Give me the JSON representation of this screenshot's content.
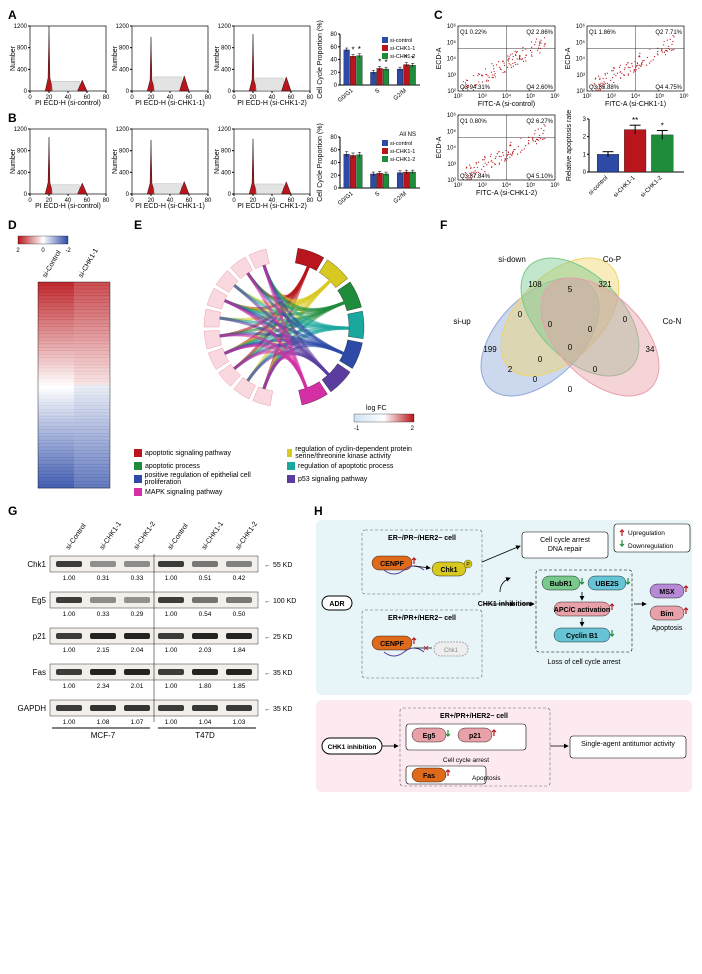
{
  "palette": {
    "red": "#b8161c",
    "blue": "#2c4aa6",
    "green": "#1e8c3b",
    "yellow": "#d8c822",
    "purple": "#5a3d9e",
    "teal": "#1aa79e",
    "magenta": "#d42fa4",
    "orange": "#e06a1c",
    "pink": "#f4c7d9",
    "lightblue": "#cfe3f2",
    "grey": "#d8d8d8",
    "black": "#000000",
    "white": "#ffffff"
  },
  "A": {
    "label": "A",
    "histograms": [
      {
        "xlabel": "PI ECD-H (si-control)",
        "xticks": [
          0,
          20,
          40,
          60,
          80
        ],
        "yticks": [
          0,
          400,
          800,
          1200
        ],
        "g1_x": 20,
        "g1_h": 1200,
        "s_x": 40,
        "s_h": 180,
        "g2_x": 55,
        "g2_h": 200
      },
      {
        "xlabel": "PI ECD-H (si-CHK1-1)",
        "xticks": [
          0,
          20,
          40,
          60,
          80
        ],
        "yticks": [
          0,
          400,
          800,
          1200
        ],
        "g1_x": 20,
        "g1_h": 1000,
        "s_x": 40,
        "s_h": 260,
        "g2_x": 55,
        "g2_h": 280
      },
      {
        "xlabel": "PI ECD-H (si-CHK1-2)",
        "xticks": [
          0,
          20,
          40,
          60,
          80
        ],
        "yticks": [
          0,
          400,
          800,
          1200
        ],
        "g1_x": 20,
        "g1_h": 1050,
        "s_x": 40,
        "s_h": 240,
        "g2_x": 55,
        "g2_h": 260
      }
    ],
    "bar": {
      "ylabel": "Cell Cycle Proportion (%)",
      "yticks": [
        0,
        20,
        40,
        60,
        80
      ],
      "groups": [
        "G0/G1",
        "S",
        "G2/M"
      ],
      "series": [
        {
          "name": "si-control",
          "color": "#2c4aa6",
          "values": [
            55,
            20,
            25
          ],
          "errs": [
            3,
            3,
            3
          ],
          "sig": [
            "",
            "",
            ""
          ]
        },
        {
          "name": "si-CHK1-1",
          "color": "#b8161c",
          "values": [
            45,
            26,
            32
          ],
          "errs": [
            3,
            3,
            3
          ],
          "sig": [
            "*",
            "*",
            "*"
          ]
        },
        {
          "name": "si-CHK1-2",
          "color": "#1e8c3b",
          "values": [
            46,
            25,
            31
          ],
          "errs": [
            3,
            3,
            3
          ],
          "sig": [
            "*",
            "*",
            "*"
          ]
        }
      ]
    }
  },
  "B": {
    "label": "B",
    "note": "All NS",
    "histograms": [
      {
        "xlabel": "PI ECD-H (si-control)",
        "xticks": [
          0,
          20,
          40,
          60,
          80
        ],
        "yticks": [
          0,
          400,
          800,
          1200
        ],
        "g1_x": 20,
        "g1_h": 1050,
        "s_x": 40,
        "s_h": 170,
        "g2_x": 55,
        "g2_h": 200
      },
      {
        "xlabel": "PI ECD-H (si-CHK1-1)",
        "xticks": [
          0,
          20,
          40,
          60,
          80
        ],
        "yticks": [
          0,
          400,
          800,
          1200
        ],
        "g1_x": 20,
        "g1_h": 1000,
        "s_x": 40,
        "s_h": 190,
        "g2_x": 55,
        "g2_h": 230
      },
      {
        "xlabel": "PI ECD-H (si-CHK1-2)",
        "xticks": [
          0,
          20,
          40,
          60,
          80
        ],
        "yticks": [
          0,
          400,
          800,
          1200
        ],
        "g1_x": 20,
        "g1_h": 1020,
        "s_x": 40,
        "s_h": 185,
        "g2_x": 55,
        "g2_h": 225
      }
    ],
    "bar": {
      "ylabel": "Cell Cycle Proportion (%)",
      "yticks": [
        0,
        20,
        40,
        60,
        80
      ],
      "groups": [
        "G0/G1",
        "S",
        "G2/M"
      ],
      "series": [
        {
          "name": "si-control",
          "color": "#2c4aa6",
          "values": [
            53,
            22,
            24
          ],
          "errs": [
            4,
            3,
            3
          ],
          "sig": [
            "",
            "",
            ""
          ]
        },
        {
          "name": "si-CHK1-1",
          "color": "#b8161c",
          "values": [
            51,
            23,
            25
          ],
          "errs": [
            4,
            3,
            3
          ],
          "sig": [
            "",
            "",
            ""
          ]
        },
        {
          "name": "si-CHK1-2",
          "color": "#1e8c3b",
          "values": [
            52,
            22,
            25
          ],
          "errs": [
            4,
            3,
            3
          ],
          "sig": [
            "",
            "",
            ""
          ]
        }
      ]
    }
  },
  "C": {
    "label": "C",
    "scatter_axes": {
      "xlabel": "FITC-A",
      "ylabel": "ECD-A",
      "ticks": [
        "10²",
        "10³",
        "10⁴",
        "10⁵",
        "10⁶"
      ]
    },
    "plots": [
      {
        "caption": "FITC-A (si-control)",
        "q": [
          "Q1 0.22%",
          "Q2 2.86%",
          "Q3 94.31%",
          "Q4 2.60%"
        ],
        "npts": 120
      },
      {
        "caption": "FITC-A (si-CHK1-1)",
        "q": [
          "Q1 1.86%",
          "Q2 7.71%",
          "Q3 85.88%",
          "Q4 4.75%"
        ],
        "npts": 120
      },
      {
        "caption": "FITC-A (si-CHK1-2)",
        "q": [
          "Q1 0.80%",
          "Q2 6.27%",
          "Q3 87.84%",
          "Q4 5.10%"
        ],
        "npts": 120
      }
    ],
    "bar": {
      "ylabel": "Relative apoptosis rate",
      "yticks": [
        0,
        1,
        2,
        3
      ],
      "series": [
        {
          "name": "si-control",
          "color": "#2c4aa6",
          "value": 1.0,
          "err": 0.15,
          "sig": ""
        },
        {
          "name": "si-CHK1-1",
          "color": "#b8161c",
          "value": 2.4,
          "err": 0.25,
          "sig": "**"
        },
        {
          "name": "si-CHK1-2",
          "color": "#1e8c3b",
          "value": 2.1,
          "err": 0.25,
          "sig": "*"
        }
      ]
    }
  },
  "D": {
    "label": "D",
    "cols": [
      "si-Control",
      "si-CHK1-1"
    ],
    "colorbar": {
      "min": -2,
      "max": 2,
      "ticks": [
        2,
        0,
        -2
      ],
      "colors": [
        "#b8161c",
        "#ffffff",
        "#2c4aa6"
      ]
    },
    "rows": 60
  },
  "E": {
    "label": "E",
    "logFC": {
      "min": -1,
      "max": 2,
      "label": "log FC",
      "colors": [
        "#cfe3f2",
        "#ffffff",
        "#b8161c"
      ]
    },
    "categories": [
      {
        "name": "apoptotic signaling pathway",
        "color": "#b8161c"
      },
      {
        "name": "regulation of cyclin-dependent protein serine/threonine kinase activity",
        "color": "#d8c822"
      },
      {
        "name": "apoptotic process",
        "color": "#1e8c3b"
      },
      {
        "name": "regulation of apoptotic process",
        "color": "#1aa79e"
      },
      {
        "name": "positive regulation of epithelial cell proliferation",
        "color": "#2c4aa6"
      },
      {
        "name": "p53 signaling pathway",
        "color": "#5a3d9e"
      },
      {
        "name": "MAPK signaling pathway",
        "color": "#d42fa4"
      }
    ]
  },
  "F": {
    "label": "F",
    "sets": [
      "si-up",
      "si-down",
      "Co-P",
      "Co-N"
    ],
    "set_colors": [
      "#8fa8d8",
      "#f0d46a",
      "#79c98d",
      "#e8a0a9"
    ],
    "values": {
      "A": 199,
      "B": 108,
      "C": 321,
      "D": 34,
      "AB": 0,
      "AC": 2,
      "AD": 0,
      "BC": 5,
      "BD": 0,
      "CD": 0,
      "ABC": 0,
      "ABD": 0,
      "ACD": 0,
      "BCD": 0,
      "ABCD": 0
    }
  },
  "G": {
    "label": "G",
    "columns_global": [
      "si-Control",
      "si-CHK1-1",
      "si-CHK1-2",
      "si-Control",
      "si-CHK1-1",
      "si-CHK1-2"
    ],
    "cell_lines": [
      "MCF-7",
      "T47D"
    ],
    "rows": [
      {
        "protein": "Chk1",
        "mw": "55 KD",
        "vals": [
          1.0,
          0.31,
          0.33,
          1.0,
          0.51,
          0.42
        ]
      },
      {
        "protein": "Eg5",
        "mw": "100 KD",
        "vals": [
          1.0,
          0.33,
          0.29,
          1.0,
          0.54,
          0.5
        ]
      },
      {
        "protein": "p21",
        "mw": "25 KD",
        "vals": [
          1.0,
          2.15,
          2.04,
          1.0,
          2.03,
          1.84
        ]
      },
      {
        "protein": "Fas",
        "mw": "35 KD",
        "vals": [
          1.0,
          2.34,
          2.01,
          1.0,
          1.8,
          1.85
        ]
      },
      {
        "protein": "GAPDH",
        "mw": "35 KD",
        "vals": [
          1.0,
          1.08,
          1.07,
          1.0,
          1.04,
          1.03
        ]
      }
    ]
  },
  "H": {
    "label": "H",
    "legend": {
      "up": {
        "label": "Upregulation",
        "color": "#b8161c"
      },
      "down": {
        "label": "Downregulation",
        "color": "#1e8c3b"
      }
    },
    "top": {
      "bg": "#e7f4f8",
      "cells": [
        "ER−/PR−/HER2− cell",
        "ER+/PR+/HER2− cell"
      ],
      "adr": "ADR",
      "chk_inh": "CHK1 inhibition",
      "cenpf": "CENPF",
      "chk1": "Chk1",
      "box_dna": "Cell cycle arrest\nDNA repair",
      "bubr1": "BubR1",
      "ube2s": "UBE2S",
      "apc": "APC/C activation",
      "cyclinb1": "Cyclin B1",
      "loss": "Loss of cell cycle arrest",
      "msx": "MSX",
      "bim": "Bim",
      "apoptosis": "Apoptosis"
    },
    "bottom": {
      "bg": "#fdeaf0",
      "cell": "ER+/PR+/HER2− cell",
      "chk_inh": "CHK1 inhibition",
      "eg5": "Eg5",
      "p21": "p21",
      "cellcycle": "Cell cycle arrest",
      "fas": "Fas",
      "apoptosis": "Apoptosis",
      "single": "Single-agent antitumor activity"
    }
  }
}
